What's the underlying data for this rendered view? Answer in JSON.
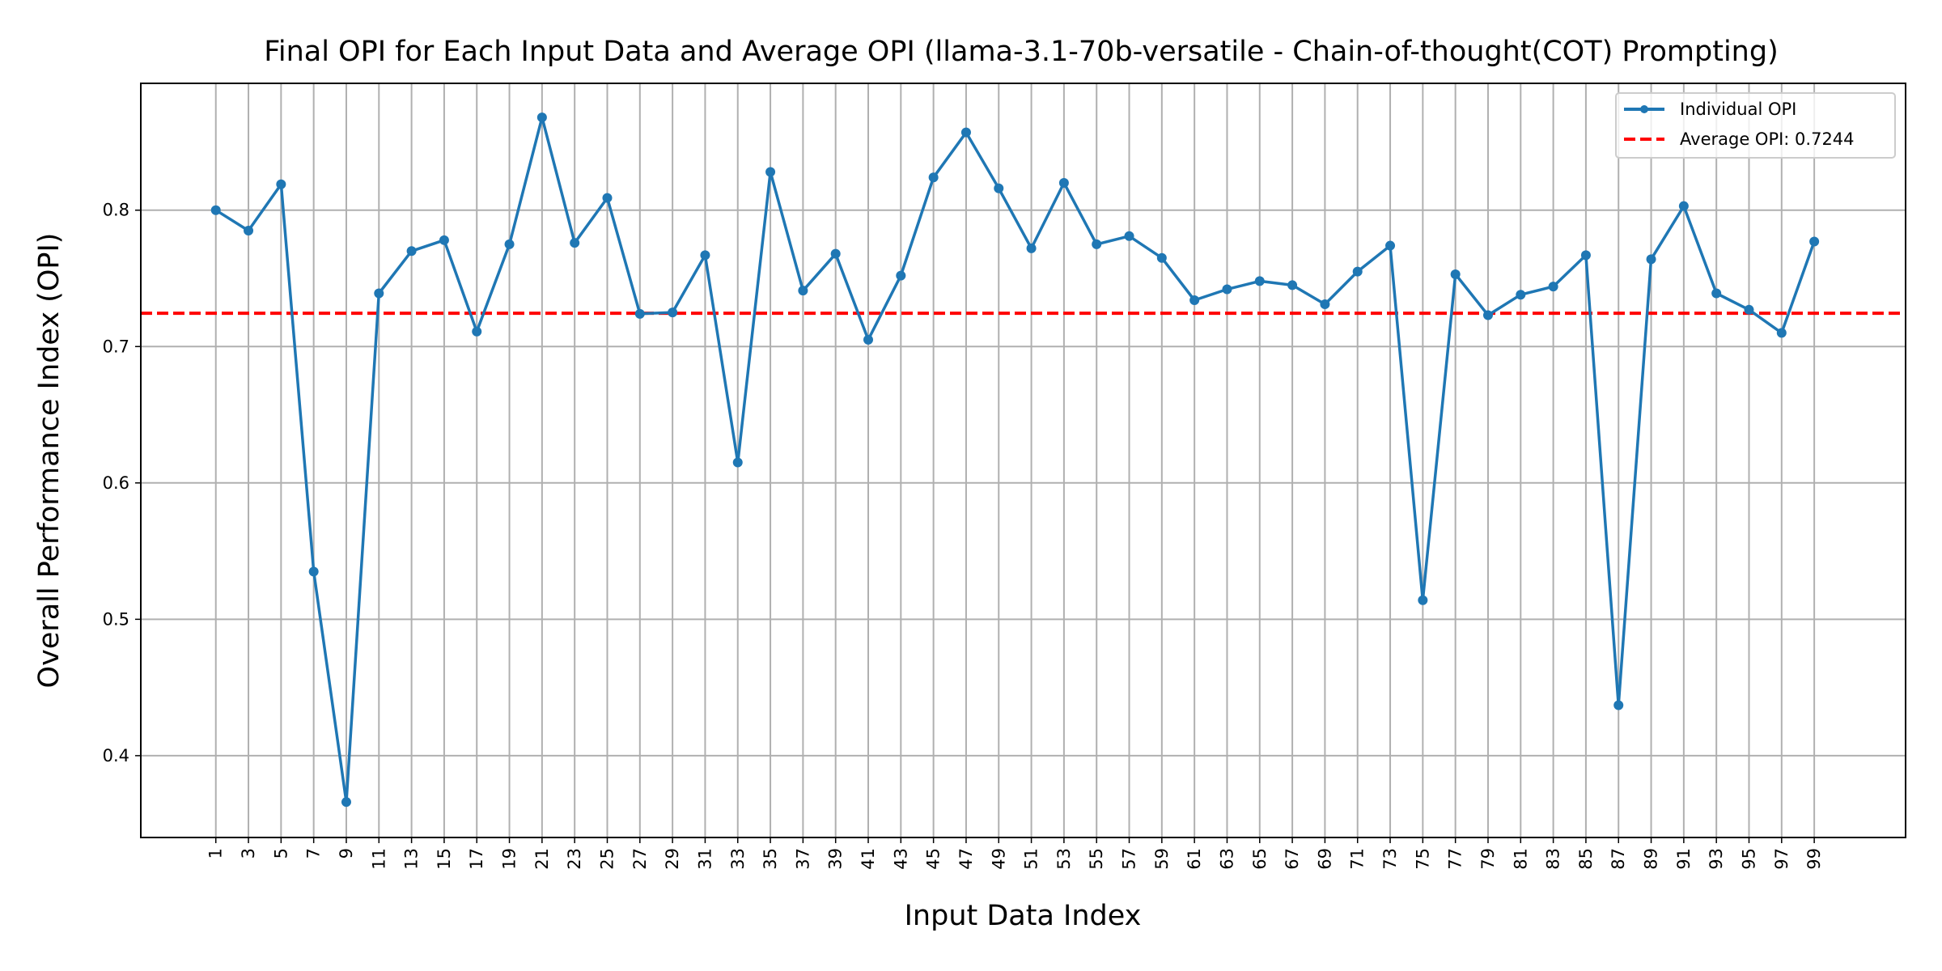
{
  "chart_data": {
    "type": "line",
    "title": "Final OPI for Each Input Data and Average OPI (llama-3.1-70b-versatile - Chain-of-thought(COT) Prompting)",
    "xlabel": "Input Data Index",
    "ylabel": "Overall Performance Index (OPI)",
    "xlim": [
      -3.6,
      104.6
    ],
    "ylim": [
      0.34,
      0.893
    ],
    "yticks": [
      0.4,
      0.5,
      0.6,
      0.7,
      0.8
    ],
    "ytick_labels": [
      "0.4",
      "0.5",
      "0.6",
      "0.7",
      "0.8"
    ],
    "xticks": [
      1,
      3,
      5,
      7,
      9,
      11,
      13,
      15,
      17,
      19,
      21,
      23,
      25,
      27,
      29,
      31,
      33,
      35,
      37,
      39,
      41,
      43,
      45,
      47,
      49,
      51,
      53,
      55,
      57,
      59,
      61,
      63,
      65,
      67,
      69,
      71,
      73,
      75,
      77,
      79,
      81,
      83,
      85,
      87,
      89,
      91,
      93,
      95,
      97,
      99
    ],
    "xtick_labels": [
      "1",
      "3",
      "5",
      "7",
      "9",
      "11",
      "13",
      "15",
      "17",
      "19",
      "21",
      "23",
      "25",
      "27",
      "29",
      "31",
      "33",
      "35",
      "37",
      "39",
      "41",
      "43",
      "45",
      "47",
      "49",
      "51",
      "53",
      "55",
      "57",
      "59",
      "61",
      "63",
      "65",
      "67",
      "69",
      "71",
      "73",
      "75",
      "77",
      "79",
      "81",
      "83",
      "85",
      "87",
      "89",
      "91",
      "93",
      "95",
      "97",
      "99"
    ],
    "grid": true,
    "legend_position": "top-right",
    "series": [
      {
        "name": "Individual OPI",
        "color": "#1f77b4",
        "x": [
          1,
          3,
          5,
          7,
          9,
          11,
          13,
          15,
          17,
          19,
          21,
          23,
          25,
          27,
          29,
          31,
          33,
          35,
          37,
          39,
          41,
          43,
          45,
          47,
          49,
          51,
          53,
          55,
          57,
          59,
          61,
          63,
          65,
          67,
          69,
          71,
          73,
          75,
          77,
          79,
          81,
          83,
          85,
          87,
          89,
          91,
          93,
          95,
          97,
          99
        ],
        "values": [
          0.8,
          0.785,
          0.819,
          0.535,
          0.366,
          0.739,
          0.77,
          0.778,
          0.711,
          0.775,
          0.868,
          0.776,
          0.809,
          0.724,
          0.725,
          0.767,
          0.615,
          0.828,
          0.741,
          0.768,
          0.705,
          0.752,
          0.824,
          0.857,
          0.816,
          0.772,
          0.82,
          0.775,
          0.781,
          0.765,
          0.734,
          0.742,
          0.748,
          0.745,
          0.731,
          0.755,
          0.774,
          0.514,
          0.753,
          0.723,
          0.738,
          0.744,
          0.767,
          0.437,
          0.764,
          0.803,
          0.739,
          0.727,
          0.71,
          0.777
        ]
      }
    ],
    "reference_line": {
      "name": "Average OPI: 0.7244",
      "value": 0.7244,
      "color": "#ff0000",
      "style": "dashed"
    }
  }
}
